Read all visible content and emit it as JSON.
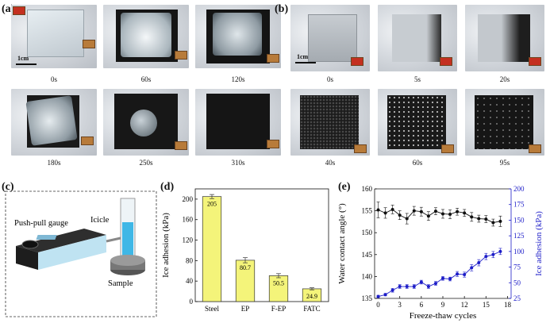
{
  "panel_labels": {
    "a": "(a)",
    "b": "(b)",
    "c": "(c)",
    "d": "(d)",
    "e": "(e)"
  },
  "panel_a": {
    "scale_label": "1cm",
    "times": [
      "0s",
      "60s",
      "120s",
      "180s",
      "250s",
      "310s"
    ]
  },
  "panel_b": {
    "scale_label": "1cm",
    "times": [
      "0s",
      "5s",
      "20s",
      "40s",
      "60s",
      "95s"
    ]
  },
  "panel_c": {
    "labels": {
      "gauge": "Push-pull gauge",
      "icicle": "Icicle",
      "sample": "Sample"
    }
  },
  "chart_data": [
    {
      "type": "bar",
      "panel": "d",
      "categories": [
        "Steel",
        "EP",
        "F-EP",
        "FATC"
      ],
      "values": [
        205,
        80.7,
        50.5,
        24.9
      ],
      "value_labels": [
        "205",
        "80.7",
        "50.5",
        "24.9"
      ],
      "errors": [
        4,
        5,
        4,
        2
      ],
      "ylabel": "Ice adhesion (kPa)",
      "ylim": [
        0,
        220
      ],
      "yticks": [
        0,
        40,
        80,
        120,
        160,
        200
      ],
      "bar_color": "#f4f47a"
    },
    {
      "type": "line",
      "panel": "e",
      "xlabel": "Freeze-thaw cycles",
      "xlim": [
        -0.5,
        18.5
      ],
      "xticks": [
        0,
        3,
        6,
        9,
        12,
        15,
        18
      ],
      "ylabel_left": "Water contact angle (°)",
      "ylim_left": [
        135,
        160
      ],
      "yticks_left": [
        135,
        140,
        145,
        150,
        155,
        160
      ],
      "ylabel_right": "Ice adhesion (kPa)",
      "ylim_right": [
        25,
        200
      ],
      "yticks_right": [
        25,
        50,
        75,
        100,
        125,
        150,
        175,
        200
      ],
      "series": [
        {
          "axis": "left",
          "color": "#111111",
          "x": [
            0,
            1,
            2,
            3,
            4,
            5,
            6,
            7,
            8,
            9,
            10,
            11,
            12,
            13,
            14,
            15,
            16,
            17
          ],
          "y": [
            155.2,
            154.5,
            155.3,
            154.0,
            153.2,
            155.0,
            154.8,
            153.8,
            154.9,
            154.3,
            154.2,
            154.8,
            154.5,
            153.6,
            153.2,
            153.1,
            152.3,
            152.6
          ],
          "err": [
            1.8,
            1.2,
            1.0,
            1.0,
            1.2,
            1.0,
            1.0,
            1.0,
            0.8,
            1.0,
            1.0,
            0.8,
            0.8,
            1.0,
            0.8,
            0.8,
            0.8,
            1.2
          ]
        },
        {
          "axis": "right",
          "color": "#1d1dc8",
          "x": [
            0,
            1,
            2,
            3,
            4,
            5,
            6,
            7,
            8,
            9,
            10,
            11,
            12,
            13,
            14,
            15,
            16,
            17
          ],
          "y": [
            28,
            31,
            38,
            44,
            44,
            44,
            51,
            44,
            49,
            57,
            56,
            64,
            63,
            74,
            82,
            92,
            95,
            100
          ],
          "err": [
            2,
            2,
            3,
            3,
            3,
            3,
            3,
            3,
            3,
            3,
            3,
            4,
            4,
            5,
            5,
            5,
            5,
            5
          ]
        }
      ]
    }
  ]
}
